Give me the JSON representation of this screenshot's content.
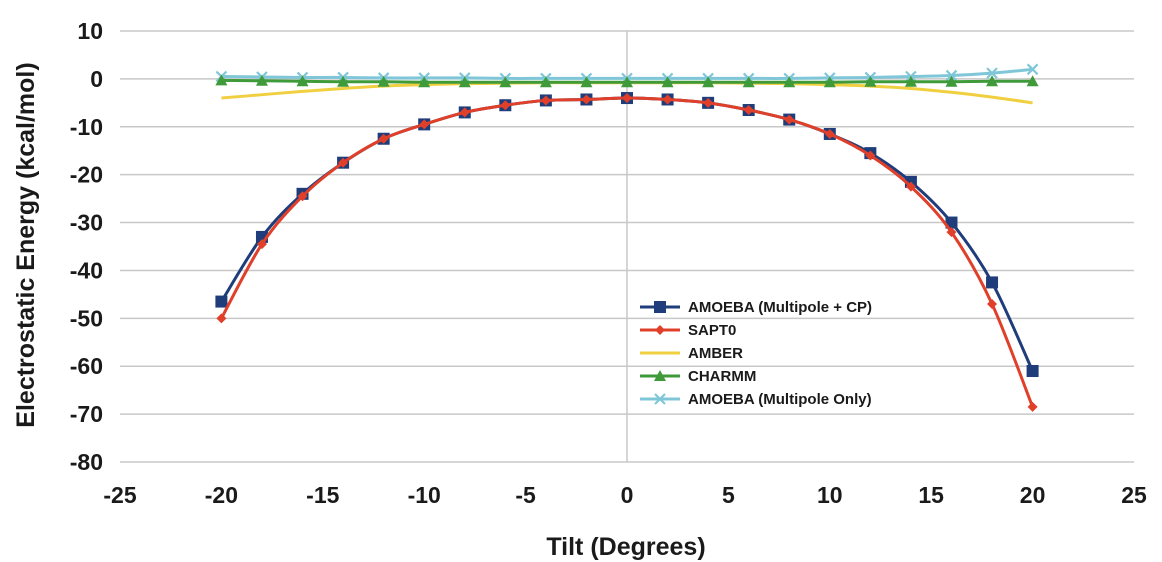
{
  "chart_data": {
    "type": "line",
    "xlabel": "Tilt (Degrees)",
    "ylabel": "Electrostatic Energy (kcal/mol)",
    "xlim": [
      -25,
      25
    ],
    "ylim": [
      -80,
      10
    ],
    "xticks": [
      -25,
      -20,
      -15,
      -10,
      -5,
      0,
      5,
      10,
      15,
      20,
      25
    ],
    "yticks": [
      10,
      0,
      -10,
      -20,
      -30,
      -40,
      -50,
      -60,
      -70,
      -80
    ],
    "grid": "horizontal",
    "legend_position": "lower-right",
    "x": [
      -20,
      -18,
      -16,
      -14,
      -12,
      -10,
      -8,
      -6,
      -4,
      -2,
      0,
      2,
      4,
      6,
      8,
      10,
      12,
      14,
      16,
      18,
      20
    ],
    "series": [
      {
        "name": "AMOEBA (Multipole + CP)",
        "color": "#1f3d7a",
        "marker": "square",
        "values": [
          -46.5,
          -33.0,
          -24.0,
          -17.5,
          -12.5,
          -9.5,
          -7.0,
          -5.5,
          -4.5,
          -4.3,
          -4.0,
          -4.3,
          -5.0,
          -6.5,
          -8.5,
          -11.5,
          -15.5,
          -21.5,
          -30.0,
          -42.5,
          -61.0
        ]
      },
      {
        "name": "SAPT0",
        "color": "#e0402a",
        "marker": "diamond",
        "values": [
          -50.0,
          -34.5,
          -24.5,
          -17.5,
          -12.5,
          -9.5,
          -7.0,
          -5.5,
          -4.5,
          -4.3,
          -4.0,
          -4.3,
          -5.0,
          -6.5,
          -8.5,
          -11.5,
          -16.0,
          -22.5,
          -32.0,
          -47.0,
          -68.5
        ]
      },
      {
        "name": "AMBER",
        "color": "#f0d040",
        "marker": "none",
        "values": [
          -4.0,
          -3.3,
          -2.6,
          -2.0,
          -1.5,
          -1.2,
          -1.0,
          -0.9,
          -0.8,
          -0.8,
          -0.8,
          -0.8,
          -0.8,
          -0.9,
          -1.0,
          -1.2,
          -1.5,
          -2.0,
          -2.8,
          -3.8,
          -5.0
        ]
      },
      {
        "name": "CHARMM",
        "color": "#3f9a3a",
        "marker": "triangle",
        "values": [
          -0.3,
          -0.4,
          -0.5,
          -0.6,
          -0.6,
          -0.7,
          -0.7,
          -0.7,
          -0.7,
          -0.7,
          -0.7,
          -0.7,
          -0.7,
          -0.7,
          -0.7,
          -0.7,
          -0.6,
          -0.6,
          -0.6,
          -0.5,
          -0.5
        ]
      },
      {
        "name": "AMOEBA (Multipole Only)",
        "color": "#7fc7d8",
        "marker": "x",
        "values": [
          0.5,
          0.4,
          0.3,
          0.3,
          0.2,
          0.2,
          0.2,
          0.1,
          0.1,
          0.1,
          0.1,
          0.1,
          0.1,
          0.1,
          0.1,
          0.2,
          0.3,
          0.5,
          0.7,
          1.2,
          2.0
        ]
      }
    ]
  }
}
